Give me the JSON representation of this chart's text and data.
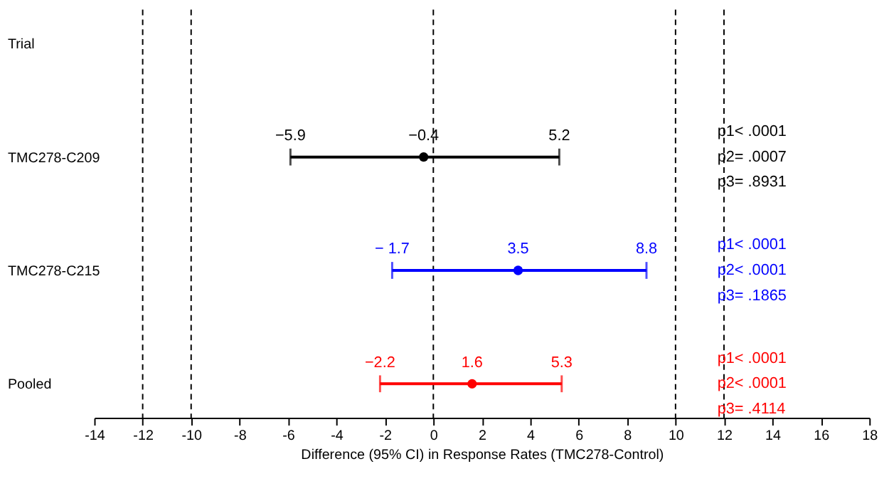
{
  "chart_data": {
    "type": "scatter",
    "orientation": "horizontal",
    "xlabel": "Difference (95% CI) in Response Rates (TMC278-Control)",
    "categories": [
      "Trial",
      "TMC278-C209",
      "TMC278-C215",
      "Pooled"
    ],
    "xlim": [
      -14,
      18
    ],
    "xticks": [
      -14,
      -12,
      -10,
      -8,
      -6,
      -4,
      -2,
      0,
      2,
      4,
      6,
      8,
      10,
      12,
      14,
      16,
      18
    ],
    "grid": false,
    "marker": "circle",
    "series": [
      {
        "color": "#000000",
        "values": [
          null,
          -0.4,
          null,
          null
        ],
        "errors": [
          null,
          [
            -5.9,
            5.2
          ],
          null,
          null
        ],
        "value_labels": [
          null,
          "−0.4",
          null,
          null
        ]
      },
      {
        "color": "#0000ff",
        "values": [
          null,
          null,
          3.5,
          null
        ],
        "errors": [
          null,
          null,
          [
            -1.7,
            8.8
          ],
          null
        ],
        "value_labels": [
          null,
          null,
          "3.5",
          null
        ]
      },
      {
        "color": "#ff0000",
        "values": [
          null,
          null,
          null,
          1.6
        ],
        "errors": [
          null,
          null,
          null,
          [
            -2.2,
            5.3
          ]
        ],
        "value_labels": [
          null,
          null,
          null,
          "1.6"
        ]
      }
    ],
    "ref_lines": [
      {
        "axis": "x",
        "value": -12,
        "line_style": "dashed"
      },
      {
        "axis": "x",
        "value": -10,
        "line_style": "dashed"
      },
      {
        "axis": "x",
        "value": 0,
        "line_style": "dashed"
      },
      {
        "axis": "x",
        "value": 10,
        "line_style": "dashed"
      },
      {
        "axis": "x",
        "value": 12,
        "line_style": "dashed"
      }
    ],
    "annotations": [
      {
        "text": "−5.9",
        "x": -5.9,
        "y": "TMC278-C209"
      },
      {
        "text": "5.2",
        "x": 5.2,
        "y": "TMC278-C209"
      },
      {
        "text": "− 1.7",
        "x": -1.7,
        "y": "TMC278-C215"
      },
      {
        "text": "8.8",
        "x": 8.8,
        "y": "TMC278-C215"
      },
      {
        "text": "−2.2",
        "x": -2.2,
        "y": "Pooled"
      },
      {
        "text": "5.3",
        "x": 5.3,
        "y": "Pooled"
      },
      "p1< .0001",
      "p2= .0007",
      "p3= .8931",
      "p1< .0001",
      "p2< .0001",
      "p3= .1865",
      "p1< .0001",
      "p2< .0001",
      "p3= .4114"
    ]
  }
}
